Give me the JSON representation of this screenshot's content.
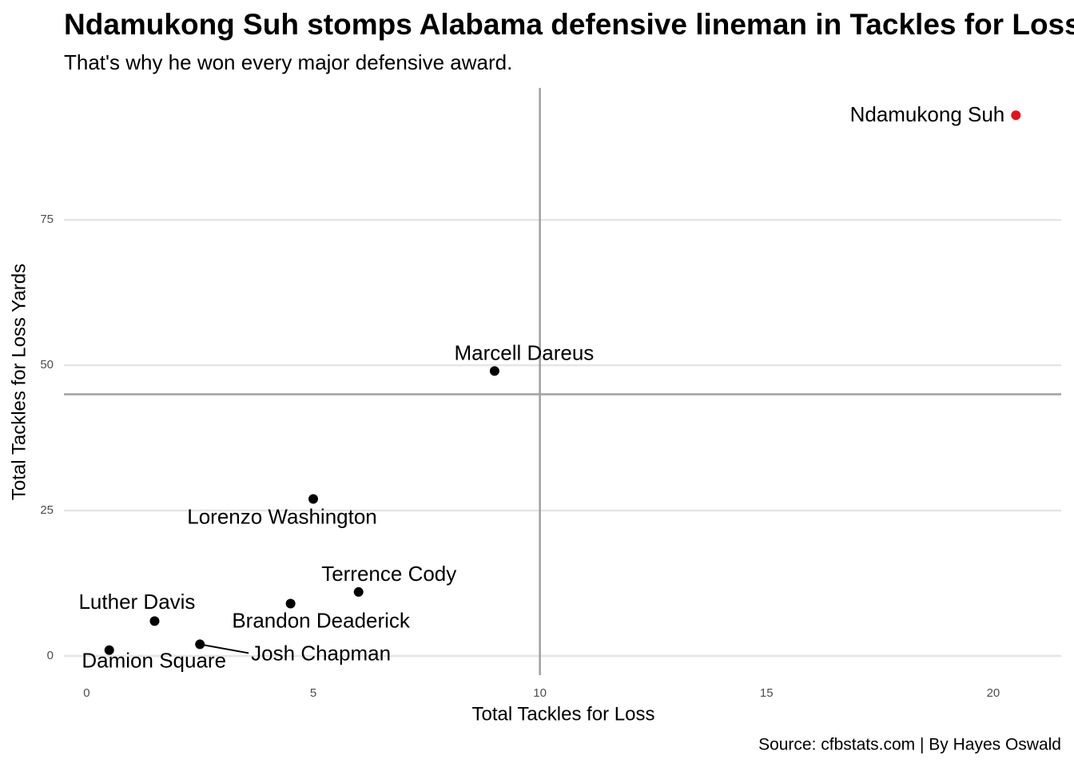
{
  "chart_data": {
    "type": "scatter",
    "title": "Ndamukong Suh stomps Alabama defensive lineman in Tackles for Loss",
    "subtitle": "That's why he won every major defensive award.",
    "caption": "Source: cfbstats.com | By Hayes Oswald",
    "x_label": "Total Tackles for Loss",
    "y_label": "Total Tackles for Loss Yards",
    "labels": [
      "Ndamukong Suh",
      "Marcell Dareus",
      "Lorenzo Washington",
      "Terrence Cody",
      "Brandon Deaderick",
      "Luther Davis",
      "Josh Chapman",
      "Damion Square"
    ],
    "x": [
      20.5,
      9,
      5,
      6,
      4.5,
      1.5,
      2.5,
      0.5
    ],
    "y": [
      93,
      49,
      27,
      11,
      9,
      6,
      2,
      1
    ],
    "colors": [
      "#e8101c",
      "#000000",
      "#000000",
      "#000000",
      "#000000",
      "#000000",
      "#000000",
      "#000000"
    ],
    "reference_lines": {
      "x": 10,
      "y": 45
    },
    "xlim": [
      -0.5,
      21.5
    ],
    "ylim": [
      -3.3,
      97.7
    ],
    "xticks": [
      0,
      5,
      10,
      15,
      20
    ],
    "yticks": [
      0,
      25,
      50,
      75
    ],
    "grid": true
  }
}
